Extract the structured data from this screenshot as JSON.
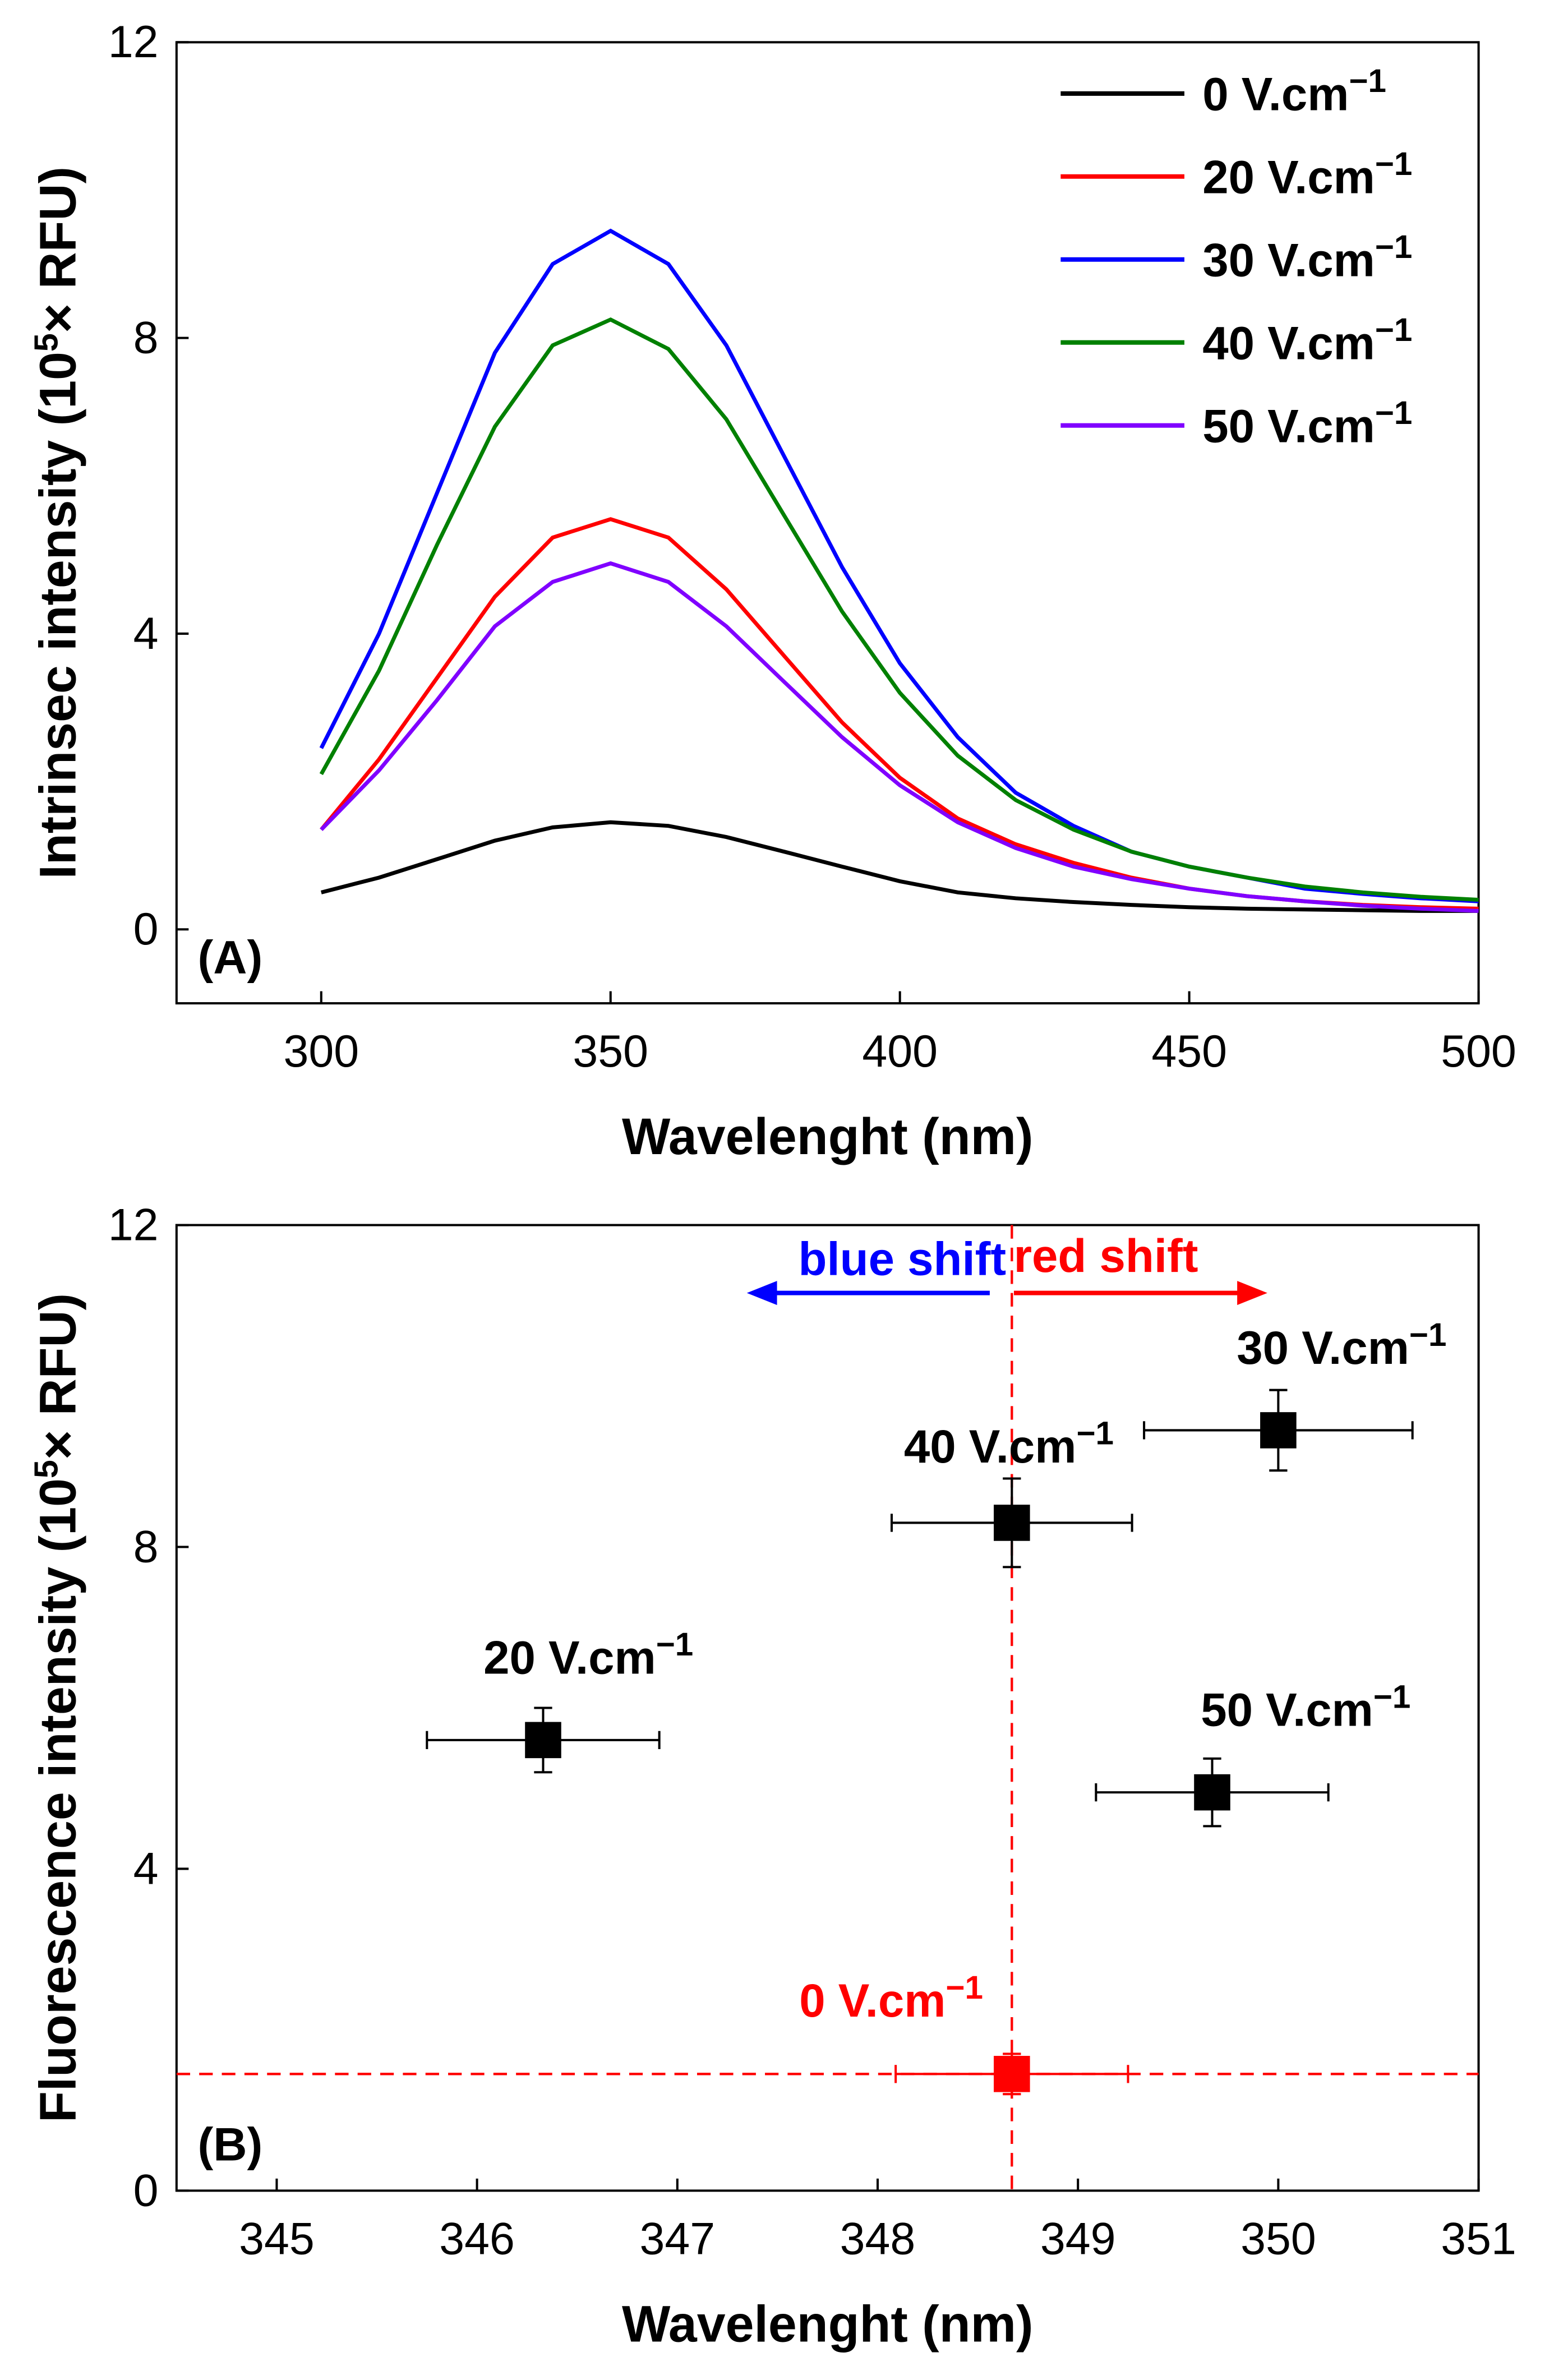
{
  "chart_data": [
    {
      "type": "line",
      "panel_label": "(A)",
      "xlabel": "Wavelenght (nm)",
      "ylabel": {
        "pre": "Intrinsec intensity (10",
        "sup": "5",
        "post": "× RFU)"
      },
      "xlim": [
        275,
        500
      ],
      "ylim": [
        -1,
        12
      ],
      "xticks": [
        300,
        350,
        400,
        450,
        500
      ],
      "yticks": [
        0,
        4,
        8,
        12
      ],
      "legend_position": "top-right",
      "x": [
        300,
        310,
        320,
        330,
        340,
        350,
        360,
        370,
        380,
        390,
        400,
        410,
        420,
        430,
        440,
        450,
        460,
        470,
        480,
        490,
        500
      ],
      "series": [
        {
          "name": "0 V.cm",
          "sup": "−1",
          "color": "#000000",
          "values": [
            0.5,
            0.7,
            0.95,
            1.2,
            1.38,
            1.45,
            1.4,
            1.25,
            1.05,
            0.85,
            0.65,
            0.5,
            0.42,
            0.37,
            0.33,
            0.3,
            0.28,
            0.27,
            0.26,
            0.25,
            0.25
          ]
        },
        {
          "name": "20 V.cm",
          "sup": "−1",
          "color": "#ff0000",
          "values": [
            1.35,
            2.3,
            3.4,
            4.5,
            5.3,
            5.55,
            5.3,
            4.6,
            3.7,
            2.8,
            2.05,
            1.5,
            1.15,
            0.9,
            0.7,
            0.55,
            0.45,
            0.38,
            0.33,
            0.3,
            0.28
          ]
        },
        {
          "name": "30 V.cm",
          "sup": "−1",
          "color": "#0000ff",
          "values": [
            2.45,
            4.0,
            5.9,
            7.8,
            9.0,
            9.45,
            9.0,
            7.9,
            6.4,
            4.9,
            3.6,
            2.6,
            1.85,
            1.4,
            1.05,
            0.85,
            0.7,
            0.55,
            0.48,
            0.42,
            0.38
          ]
        },
        {
          "name": "40 V.cm",
          "sup": "−1",
          "color": "#008000",
          "values": [
            2.1,
            3.5,
            5.2,
            6.8,
            7.9,
            8.25,
            7.85,
            6.9,
            5.6,
            4.3,
            3.2,
            2.35,
            1.75,
            1.35,
            1.05,
            0.85,
            0.7,
            0.58,
            0.5,
            0.44,
            0.4
          ]
        },
        {
          "name": "50 V.cm",
          "sup": "−1",
          "color": "#8000ff",
          "values": [
            1.35,
            2.15,
            3.1,
            4.1,
            4.7,
            4.95,
            4.7,
            4.1,
            3.35,
            2.6,
            1.95,
            1.45,
            1.1,
            0.85,
            0.68,
            0.55,
            0.45,
            0.38,
            0.32,
            0.28,
            0.25
          ]
        }
      ]
    },
    {
      "type": "scatter",
      "panel_label": "(B)",
      "xlabel": "Wavelenght (nm)",
      "ylabel": {
        "pre": "Fluorescence intensity (10",
        "sup": "5",
        "post": "× RFU)"
      },
      "xlim": [
        344.5,
        351
      ],
      "ylim": [
        0,
        12
      ],
      "xticks": [
        345,
        346,
        347,
        348,
        349,
        350,
        351
      ],
      "yticks": [
        0,
        4,
        8,
        12
      ],
      "reference": {
        "x": 348.67,
        "y": 1.45,
        "color": "#ff0000"
      },
      "annotations": {
        "blue_shift": {
          "text": "blue shift",
          "color": "#0000ff"
        },
        "red_shift": {
          "text": "red shift",
          "color": "#ff0000"
        }
      },
      "points": [
        {
          "name": "0 V.cm",
          "sup": "−1",
          "x": 348.67,
          "y": 1.45,
          "xerr": 0.58,
          "yerr": 0.25,
          "color": "#ff0000"
        },
        {
          "name": "20 V.cm",
          "sup": "−1",
          "x": 346.33,
          "y": 5.6,
          "xerr": 0.58,
          "yerr": 0.4,
          "color": "#000000"
        },
        {
          "name": "30 V.cm",
          "sup": "−1",
          "x": 350.0,
          "y": 9.45,
          "xerr": 0.67,
          "yerr": 0.5,
          "color": "#000000"
        },
        {
          "name": "40 V.cm",
          "sup": "−1",
          "x": 348.67,
          "y": 8.3,
          "xerr": 0.6,
          "yerr": 0.55,
          "color": "#000000"
        },
        {
          "name": "50 V.cm",
          "sup": "−1",
          "x": 349.67,
          "y": 4.95,
          "xerr": 0.58,
          "yerr": 0.42,
          "color": "#000000"
        }
      ]
    }
  ]
}
